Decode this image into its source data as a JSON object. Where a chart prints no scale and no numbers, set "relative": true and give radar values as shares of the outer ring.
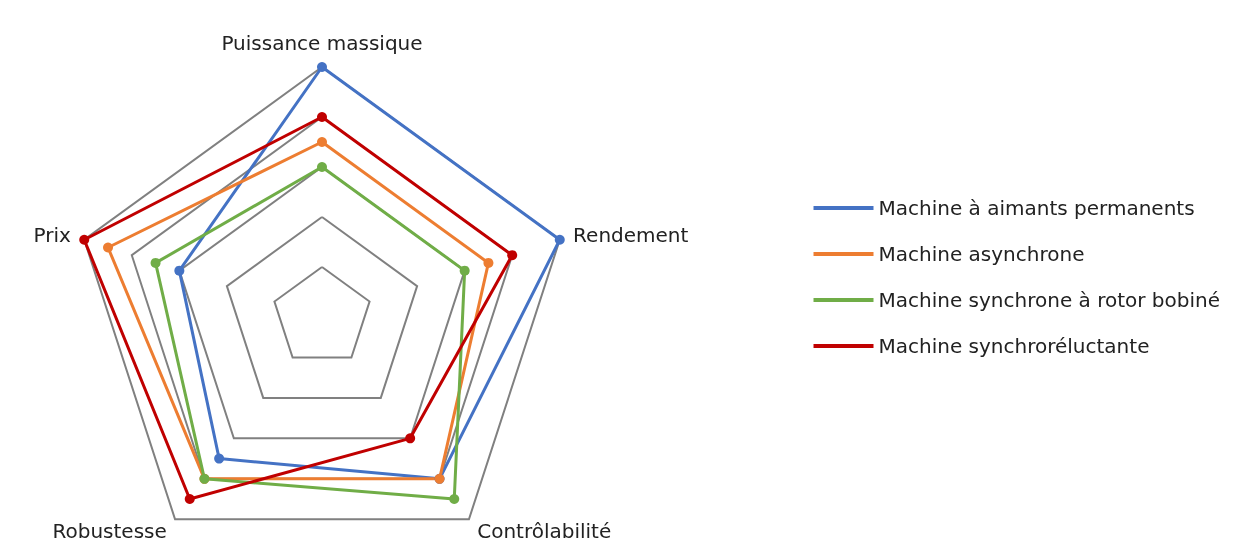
{
  "chart_data": {
    "type": "radar",
    "categories": [
      "Puissance massique",
      "Rendement",
      "Contrôlabilité",
      "Robustesse",
      "Prix"
    ],
    "relative": true,
    "grid": true,
    "legend": "right",
    "marker": "circle",
    "series": [
      {
        "name": "Machine à aimants permanents",
        "color": "#4472c4",
        "values": [
          1.0,
          1.0,
          0.8,
          0.7,
          0.6
        ]
      },
      {
        "name": "Machine asynchrone",
        "color": "#ed7d31",
        "values": [
          0.7,
          0.7,
          0.8,
          0.8,
          0.9
        ]
      },
      {
        "name": "Machine synchrone à rotor bobiné",
        "color": "#70ad47",
        "values": [
          0.6,
          0.6,
          0.9,
          0.8,
          0.7
        ]
      },
      {
        "name": "Machine synchroréluctante",
        "color": "#c00000",
        "values": [
          0.8,
          0.8,
          0.6,
          0.9,
          1.0
        ]
      }
    ]
  }
}
